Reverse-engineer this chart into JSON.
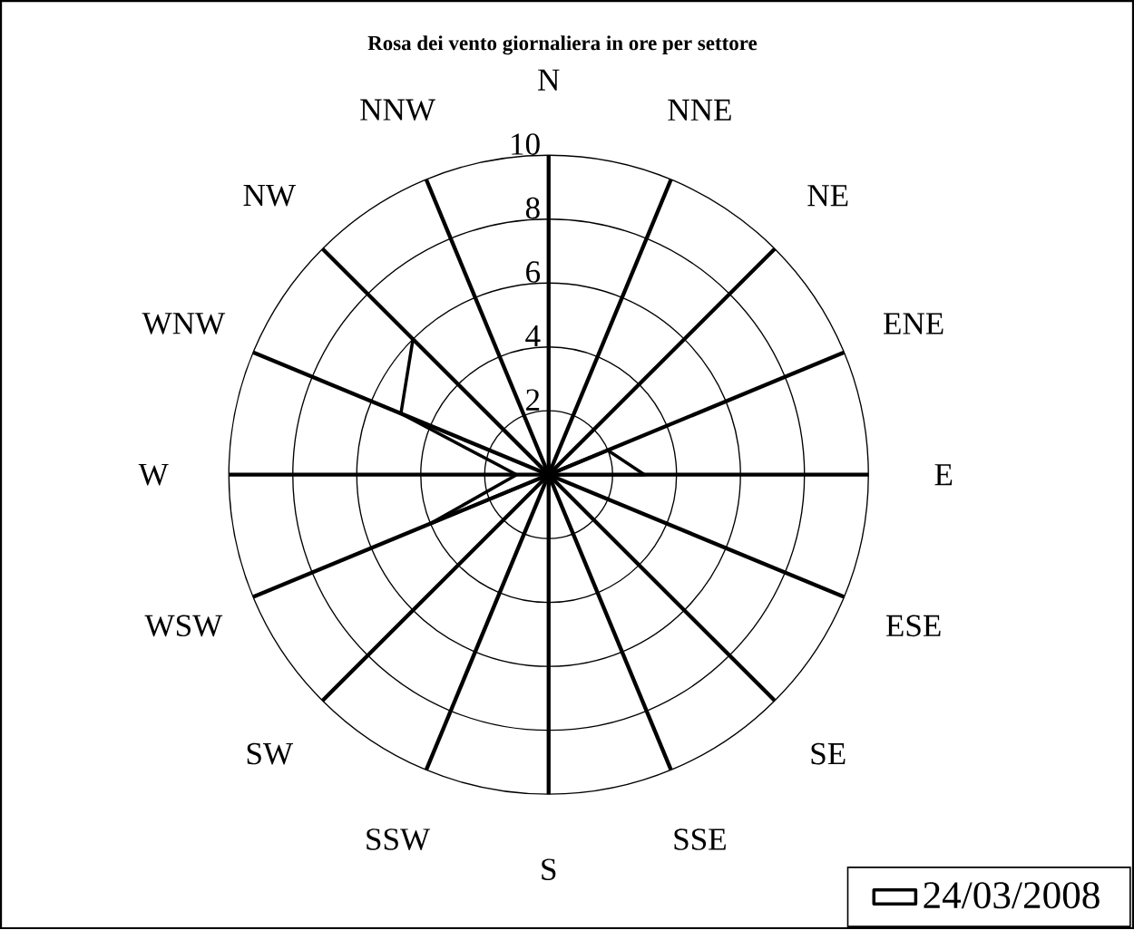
{
  "chart_data": {
    "type": "radar",
    "title": "Rosa dei vento giornaliera in ore per settore",
    "categories": [
      "N",
      "NNE",
      "NE",
      "ENE",
      "E",
      "ESE",
      "SE",
      "SSE",
      "S",
      "SSW",
      "SW",
      "WSW",
      "W",
      "WNW",
      "NW",
      "NNW"
    ],
    "series": [
      {
        "name": "24/03/2008",
        "color": "#000000",
        "values": [
          0,
          0,
          0,
          2,
          3,
          0,
          0,
          0,
          2,
          0,
          0,
          4,
          1,
          5,
          6,
          0
        ]
      }
    ],
    "ylim": [
      0,
      10
    ],
    "yticks": [
      2,
      4,
      6,
      8,
      10
    ],
    "grid": true,
    "legend": "bottom right"
  }
}
